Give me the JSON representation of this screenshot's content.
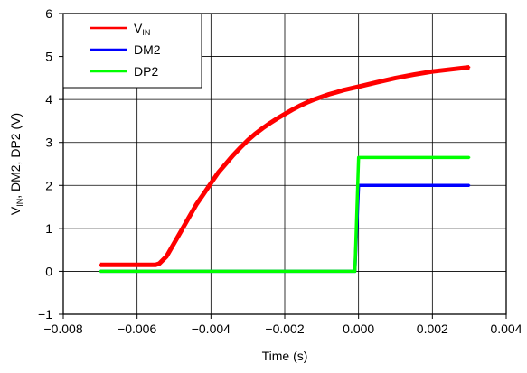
{
  "chart_data": {
    "type": "line",
    "xlabel": "Time (s)",
    "ylabel": {
      "v": "V",
      "sub": "IN",
      "rest": ", DM2, DP2 (V)"
    },
    "xlim": [
      -0.008,
      0.004
    ],
    "ylim": [
      -1,
      6
    ],
    "grid": true,
    "legend_position": "top-left",
    "x_ticks": [
      -0.008,
      -0.006,
      -0.004,
      -0.002,
      0.0,
      0.002,
      0.004
    ],
    "x_tick_labels": [
      "−0.008",
      "−0.006",
      "−0.004",
      "−0.002",
      "0.000",
      "0.002",
      "0.004"
    ],
    "y_ticks": [
      -1,
      0,
      1,
      2,
      3,
      4,
      5,
      6
    ],
    "y_tick_labels": [
      "−1",
      "0",
      "1",
      "2",
      "3",
      "4",
      "5",
      "6"
    ],
    "series": [
      {
        "name": "V_IN",
        "legend_main": "V",
        "legend_sub": "IN",
        "color": "#ff0000",
        "x": [
          -0.007,
          -0.0065,
          -0.006,
          -0.0055,
          -0.0054,
          -0.0052,
          -0.005,
          -0.0048,
          -0.0046,
          -0.0044,
          -0.0042,
          -0.004,
          -0.0038,
          -0.0036,
          -0.0034,
          -0.0032,
          -0.003,
          -0.0028,
          -0.0026,
          -0.0024,
          -0.0022,
          -0.002,
          -0.0018,
          -0.0016,
          -0.0014,
          -0.0012,
          -0.001,
          -0.0008,
          -0.0006,
          -0.0004,
          -0.0002,
          0.0,
          0.0005,
          0.001,
          0.0015,
          0.002,
          0.0025,
          0.003
        ],
        "y": [
          0.15,
          0.15,
          0.15,
          0.15,
          0.18,
          0.35,
          0.65,
          0.95,
          1.25,
          1.55,
          1.8,
          2.05,
          2.3,
          2.5,
          2.7,
          2.88,
          3.05,
          3.2,
          3.33,
          3.45,
          3.56,
          3.66,
          3.76,
          3.85,
          3.93,
          4.0,
          4.06,
          4.12,
          4.17,
          4.22,
          4.26,
          4.3,
          4.4,
          4.5,
          4.58,
          4.65,
          4.7,
          4.75
        ]
      },
      {
        "name": "DM2",
        "color": "#0000ff",
        "x": [
          -0.007,
          -0.0001,
          0.0,
          0.003
        ],
        "y": [
          0.0,
          0.0,
          2.0,
          2.0
        ]
      },
      {
        "name": "DP2",
        "color": "#00ff00",
        "x": [
          -0.007,
          -0.0001,
          0.0,
          0.003
        ],
        "y": [
          0.0,
          0.0,
          2.65,
          2.65
        ]
      }
    ]
  }
}
